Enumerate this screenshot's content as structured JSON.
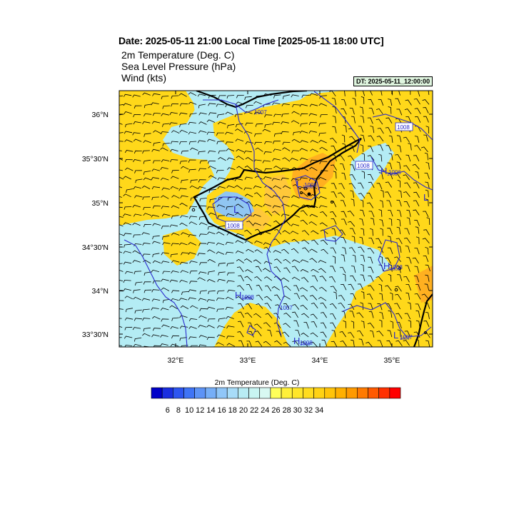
{
  "header": {
    "date_line": "Date: 2025-05-11  21:00 Local Time [2025-05-11  18:00 UTC]",
    "variables": [
      "2m Temperature (Deg. C)",
      "Sea Level Pressure   (hPa)",
      "Wind   (kts)"
    ],
    "dt_label": "DT: 2025-05-11_12:00:00"
  },
  "map": {
    "lat_ticks": [
      "36°N",
      "35°30'N",
      "35°N",
      "34°30'N",
      "34°N",
      "33°30'N"
    ],
    "lon_ticks": [
      "32°E",
      "33°E",
      "34°E",
      "35°E"
    ],
    "pressure_labels": [
      {
        "text": "1007",
        "kind": "plain"
      },
      {
        "text": "1008",
        "kind": "box"
      },
      {
        "text": "1008",
        "kind": "box"
      },
      {
        "text": "1006",
        "kind": "plain"
      },
      {
        "text": "1008",
        "kind": "box"
      },
      {
        "text": "1008",
        "kind": "plain"
      },
      {
        "text": "1006",
        "kind": "plain"
      },
      {
        "text": "1007",
        "kind": "plain"
      },
      {
        "text": "1008",
        "kind": "plain"
      },
      {
        "text": "1007",
        "kind": "plain"
      },
      {
        "text": "1008",
        "kind": "plain"
      }
    ],
    "centers": [
      {
        "letter": "L",
        "value": "1006"
      },
      {
        "letter": "H",
        "value": "1006"
      },
      {
        "letter": "H",
        "value": "1008"
      },
      {
        "letter": "H",
        "value": "1008"
      },
      {
        "letter": "H",
        "value": "1008"
      },
      {
        "letter": "L",
        "value": "1007"
      },
      {
        "letter": "L",
        "value": ""
      }
    ],
    "colors": {
      "contour": "#2b2bcc",
      "coast": "#000000",
      "yellow": "#ffd81a",
      "light_blue": "#b4ecf4",
      "orange": "#ffb020",
      "blue_mid": "#90c6f2"
    }
  },
  "colorbar": {
    "title": "2m Temperature (Deg. C)",
    "labels": [
      "6",
      "8",
      "10",
      "12",
      "14",
      "16",
      "18",
      "20",
      "22",
      "24",
      "26",
      "28",
      "30",
      "32",
      "34"
    ],
    "colors": [
      "#0000c8",
      "#1a2ee0",
      "#2d55f0",
      "#3f74f6",
      "#5d93f6",
      "#76aef7",
      "#90c6f8",
      "#a8dcf8",
      "#b8ecf4",
      "#c8f4f2",
      "#d8f8f2",
      "#ffff5a",
      "#fff03a",
      "#ffe629",
      "#ffdc1e",
      "#ffd214",
      "#ffc40a",
      "#ffb000",
      "#ff9a00",
      "#ff7a00",
      "#ff5a00",
      "#ff3000",
      "#ff0000"
    ]
  }
}
